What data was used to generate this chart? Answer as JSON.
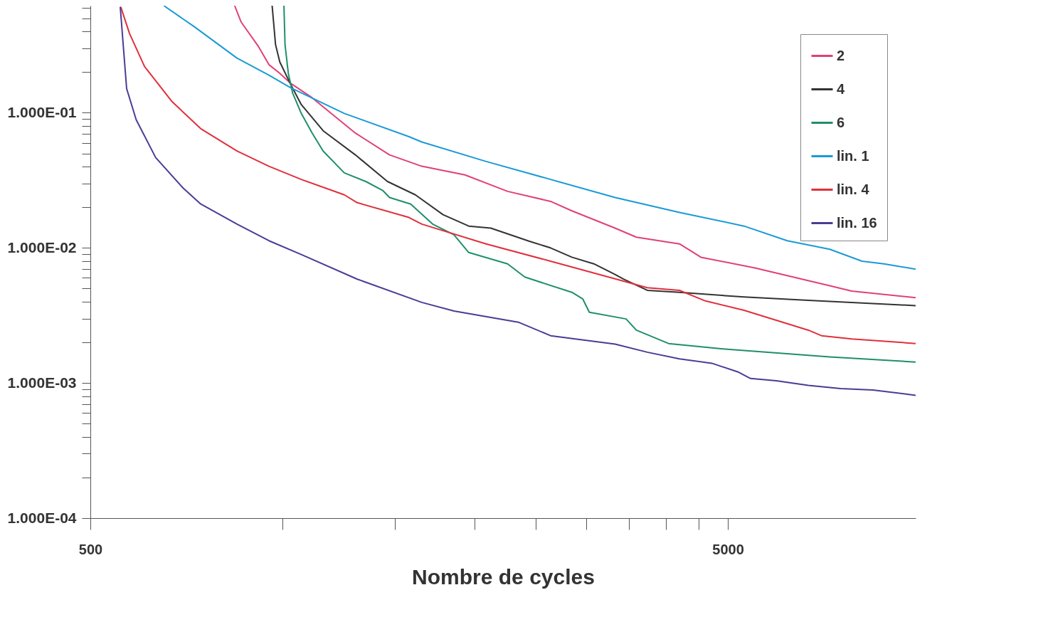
{
  "chart_data": {
    "type": "line",
    "xlabel": "Nombre de cycles",
    "log": "xy",
    "grid": false,
    "legend": "top right",
    "xlim": [
      500,
      9850
    ],
    "ylim": [
      0.0001,
      0.62
    ],
    "xticks": [
      500,
      {
        "value": 1000,
        "label": null
      },
      {
        "value": 1500,
        "label": null
      },
      {
        "value": 2000,
        "label": null
      },
      {
        "value": 2500,
        "label": null
      },
      {
        "value": 3000,
        "label": null
      },
      {
        "value": 3500,
        "label": null
      },
      {
        "value": 4000,
        "label": null
      },
      {
        "value": 4500,
        "label": null
      },
      5000
    ],
    "yticks": [
      {
        "value": 0.0001,
        "label": "1.000E-04"
      },
      {
        "value": 0.0002,
        "label": null
      },
      {
        "value": 0.0003,
        "label": null
      },
      {
        "value": 0.0004,
        "label": null
      },
      {
        "value": 0.0005,
        "label": null
      },
      {
        "value": 0.0006,
        "label": null
      },
      {
        "value": 0.0007,
        "label": null
      },
      {
        "value": 0.0008,
        "label": null
      },
      {
        "value": 0.0009,
        "label": null
      },
      {
        "value": 0.001,
        "label": "1.000E-03"
      },
      {
        "value": 0.002,
        "label": null
      },
      {
        "value": 0.003,
        "label": null
      },
      {
        "value": 0.004,
        "label": null
      },
      {
        "value": 0.005,
        "label": null
      },
      {
        "value": 0.006,
        "label": null
      },
      {
        "value": 0.007,
        "label": null
      },
      {
        "value": 0.008,
        "label": null
      },
      {
        "value": 0.009,
        "label": null
      },
      {
        "value": 0.01,
        "label": "1.000E-02"
      },
      {
        "value": 0.02,
        "label": null
      },
      {
        "value": 0.03,
        "label": null
      },
      {
        "value": 0.04,
        "label": null
      },
      {
        "value": 0.05,
        "label": null
      },
      {
        "value": 0.06,
        "label": null
      },
      {
        "value": 0.07,
        "label": null
      },
      {
        "value": 0.08,
        "label": null
      },
      {
        "value": 0.09,
        "label": null
      },
      {
        "value": 0.1,
        "label": "1.000E-01"
      },
      {
        "value": 0.2,
        "label": null
      },
      {
        "value": 0.3,
        "label": null
      },
      {
        "value": 0.4,
        "label": null
      },
      {
        "value": 0.5,
        "label": null
      },
      {
        "value": 0.6,
        "label": null
      }
    ],
    "series": [
      {
        "name": "2",
        "color": "#e0407a",
        "x": [
          842,
          862,
          918,
          953,
          991,
          1031,
          1114,
          1302,
          1473,
          1655,
          1934,
          2256,
          2635,
          2846,
          3326,
          3592,
          4198,
          4535,
          5513,
          7223,
          7820,
          9850
        ],
        "values": [
          0.62,
          0.469,
          0.308,
          0.227,
          0.196,
          0.165,
          0.129,
          0.0708,
          0.0488,
          0.0402,
          0.0347,
          0.0262,
          0.0221,
          0.0188,
          0.014,
          0.012,
          0.0107,
          0.00853,
          0.00711,
          0.00525,
          0.00479,
          0.00428
        ]
      },
      {
        "name": "4",
        "color": "#333333",
        "x": [
          964,
          976,
          991,
          1031,
          1071,
          1159,
          1302,
          1462,
          1617,
          1787,
          1961,
          2123,
          2441,
          2635,
          2846,
          3081,
          3326,
          3429,
          3737,
          4198,
          5300,
          6687,
          9850
        ],
        "values": [
          0.62,
          0.319,
          0.238,
          0.162,
          0.115,
          0.0736,
          0.0488,
          0.031,
          0.0247,
          0.0176,
          0.0145,
          0.014,
          0.0112,
          0.01,
          0.00853,
          0.00762,
          0.00636,
          0.00587,
          0.00485,
          0.00469,
          0.00433,
          0.00409,
          0.00374
        ]
      },
      {
        "name": "6",
        "color": "#1f8f6a",
        "x": [
          1006,
          1010,
          1022,
          1038,
          1071,
          1114,
          1159,
          1251,
          1352,
          1439,
          1473,
          1590,
          1721,
          1859,
          1961,
          2256,
          2401,
          2846,
          2961,
          3031,
          3461,
          3592,
          4035,
          4907,
          7223,
          9850
        ],
        "values": [
          0.62,
          0.319,
          0.196,
          0.14,
          0.0989,
          0.0708,
          0.0521,
          0.0359,
          0.031,
          0.0265,
          0.0236,
          0.0211,
          0.015,
          0.0125,
          0.00924,
          0.00762,
          0.00608,
          0.00469,
          0.00418,
          0.00334,
          0.00298,
          0.00246,
          0.00196,
          0.00179,
          0.00156,
          0.00143
        ]
      },
      {
        "name": "lin. 1",
        "color": "#1a9ad6",
        "x": [
          652,
          728,
          849,
          953,
          1031,
          1251,
          1580,
          1655,
          2088,
          2635,
          3326,
          4198,
          5300,
          6195,
          7223,
          8115,
          8785,
          9850
        ],
        "values": [
          0.62,
          0.433,
          0.254,
          0.19,
          0.153,
          0.0989,
          0.0666,
          0.0608,
          0.0436,
          0.0321,
          0.0236,
          0.0183,
          0.0145,
          0.0113,
          0.00977,
          0.00797,
          0.00762,
          0.00696
        ]
      },
      {
        "name": "lin. 4",
        "color": "#e0303c",
        "x": [
          558,
          576,
          608,
          672,
          745,
          849,
          953,
          1071,
          1251,
          1311,
          1580,
          1655,
          2088,
          2635,
          3326,
          3737,
          4198,
          4609,
          5300,
          5954,
          6687,
          7010,
          7820,
          9850
        ],
        "values": [
          0.608,
          0.386,
          0.22,
          0.1205,
          0.0762,
          0.0521,
          0.0402,
          0.0321,
          0.0247,
          0.0216,
          0.0168,
          0.015,
          0.0107,
          0.00797,
          0.0059,
          0.00507,
          0.00485,
          0.00405,
          0.00345,
          0.00291,
          0.00246,
          0.00224,
          0.00212,
          0.00196
        ]
      },
      {
        "name": "lin. 16",
        "color": "#4a3c96",
        "x": [
          557,
          570,
          590,
          633,
          699,
          745,
          849,
          953,
          1071,
          1311,
          1655,
          1859,
          2345,
          2635,
          3326,
          3737,
          4198,
          4718,
          5180,
          5426,
          5954,
          6687,
          7514,
          8441,
          9850
        ],
        "values": [
          0.608,
          0.151,
          0.0888,
          0.0466,
          0.0277,
          0.0211,
          0.015,
          0.0113,
          0.00893,
          0.00587,
          0.00395,
          0.00341,
          0.00282,
          0.00224,
          0.00194,
          0.00169,
          0.00151,
          0.0014,
          0.00121,
          0.00108,
          0.00104,
          0.00096,
          0.000908,
          0.000888,
          0.000811
        ]
      }
    ]
  }
}
